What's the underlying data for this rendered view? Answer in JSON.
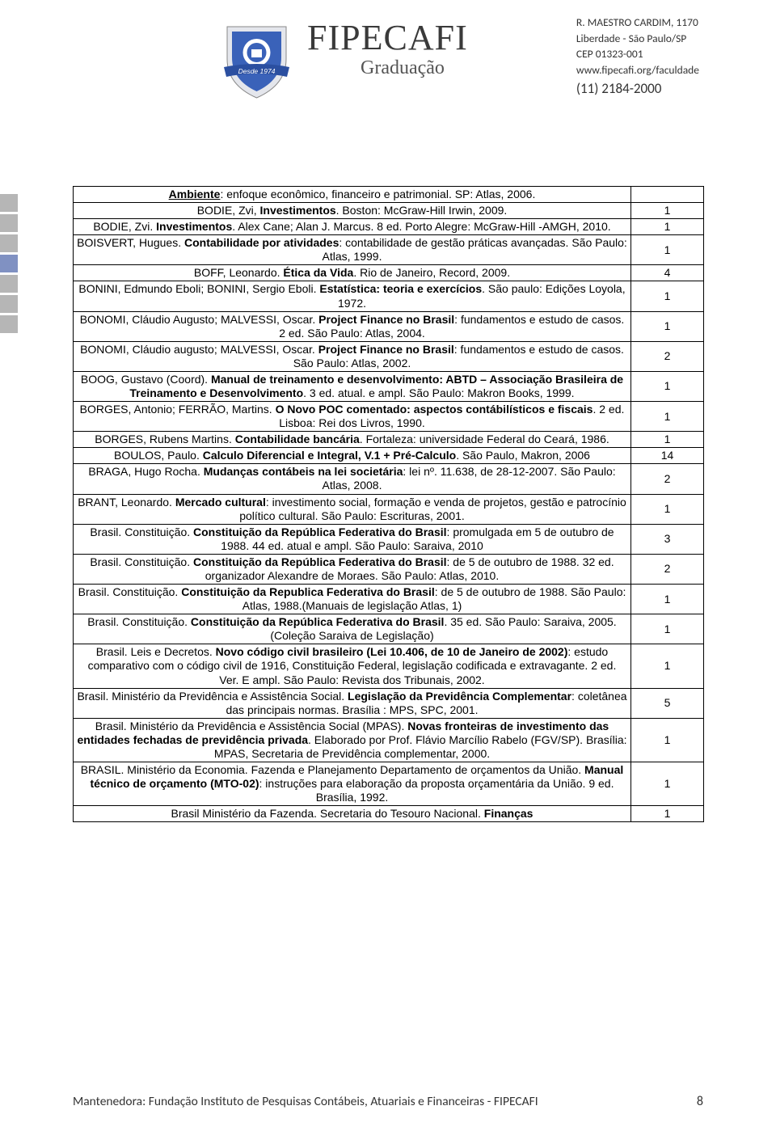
{
  "side_squares": {
    "colors": [
      "#b6b6b6",
      "#b6b6b6",
      "#b6b6b6",
      "#8091c2",
      "#b6b6b6",
      "#b6b6b6",
      "#b6b6b6"
    ]
  },
  "header": {
    "brand": "FIPECAFI",
    "subtitle": "Graduação",
    "shield": {
      "outer": "#d7d9e0",
      "inner": "#3a62b9",
      "inner2": "#ffffff",
      "ribbon_fill": "#2b4fa0",
      "ribbon_text": "Desde 1974",
      "ribbon_text_color": "#ffffff"
    }
  },
  "address": {
    "line1": "R. MAESTRO CARDIM, 1170",
    "line2": "Liberdade - São Paulo/SP",
    "line3": "CEP 01323-001",
    "line4": "www.fipecafi.org/faculdade",
    "phone": "(11) 2184-2000"
  },
  "rows": [
    {
      "html": "<span class='b'><u>Ambiente</u></span>: enfoque econômico, financeiro e patrimonial. SP: Atlas, 2006.",
      "qty": ""
    },
    {
      "html": "BODIE, Zvi, <span class='b'>Investimentos</span>. Boston: McGraw-Hill Irwin, 2009.",
      "qty": "1"
    },
    {
      "html": "BODIE, Zvi. <span class='b'>Investimentos</span>. Alex Cane; Alan J. Marcus. 8 ed. Porto Alegre: McGraw-Hill -AMGH, 2010.",
      "qty": "1"
    },
    {
      "html": "BOISVERT, Hugues. <span class='b'>Contabilidade por atividades</span>: contabilidade de gestão práticas avançadas. São Paulo: Atlas, 1999.",
      "qty": "1"
    },
    {
      "html": "BOFF, Leonardo. <span class='b'>Ética da Vida</span>. Rio de Janeiro, Record, 2009.",
      "qty": "4"
    },
    {
      "html": "BONINI, Edmundo Eboli; BONINI, Sergio Eboli. <span class='b'>Estatística: teoria e exercícios</span>. São paulo: Edições Loyola, 1972.",
      "qty": "1"
    },
    {
      "html": "BONOMI, Cláudio Augusto; MALVESSI, Oscar. <span class='b'>Project Finance no Brasil</span>: fundamentos e estudo de casos. 2 ed. São Paulo: Atlas, 2004.",
      "qty": "1"
    },
    {
      "html": "BONOMI, Cláudio augusto; MALVESSI, Oscar. <span class='b'>Project Finance no Brasil</span>: fundamentos e estudo de casos. São Paulo: Atlas, 2002.",
      "qty": "2"
    },
    {
      "html": "BOOG, Gustavo (Coord). <span class='b'>Manual de treinamento e desenvolvimento: ABTD – Associação Brasileira de Treinamento e Desenvolvimento</span>. 3 ed. atual. e ampl. São Paulo: Makron Books, 1999.",
      "qty": "1"
    },
    {
      "html": "BORGES, Antonio; FERRÃO, Martins. <span class='b'>O Novo POC comentado: aspectos contábilísticos e fiscais</span>. 2 ed. Lisboa: Rei dos Livros, 1990.",
      "qty": "1"
    },
    {
      "html": "BORGES, Rubens Martins. <span class='b'>Contabilidade bancária</span>. Fortaleza: universidade Federal do Ceará, 1986.",
      "qty": "1"
    },
    {
      "html": "BOULOS, Paulo. <span class='b'>Calculo Diferencial e Integral, V.1 + Pré-Calculo</span>. São Paulo, Makron, 2006",
      "qty": "14"
    },
    {
      "html": "BRAGA, Hugo Rocha. <span class='b'>Mudanças contábeis na lei societária</span>: lei nº. 11.638, de 28-12-2007. São Paulo: Atlas, 2008.",
      "qty": "2"
    },
    {
      "html": "BRANT, Leonardo. <span class='b'>Mercado cultural</span>: investimento social, formação e venda de projetos, gestão e patrocínio político cultural. São Paulo: Escrituras, 2001.",
      "qty": "1"
    },
    {
      "html": "Brasil. Constituição. <span class='b'>Constituição da República Federativa do Brasil</span>: promulgada em 5 de outubro de 1988. 44 ed. atual e ampl. São Paulo: Saraiva, 2010",
      "qty": "3"
    },
    {
      "html": "Brasil. Constituição. <span class='b'>Constituição da República Federativa do Brasil</span>: de 5 de outubro de 1988. 32 ed. organizador Alexandre de Moraes. São Paulo: Atlas, 2010.",
      "qty": "2"
    },
    {
      "html": "Brasil. Constituição. <span class='b'>Constituição da Republica Federativa do Brasil</span>: de 5 de outubro de 1988. São Paulo: Atlas, 1988.(Manuais de legislação Atlas, 1)",
      "qty": "1"
    },
    {
      "html": "Brasil. Constituição. <span class='b'>Constituição da República Federativa do Brasil</span>. 35 ed. São Paulo: Saraiva, 2005. (Coleção Saraiva de Legislação)",
      "qty": "1"
    },
    {
      "html": "Brasil. Leis e Decretos. <span class='b'>Novo código civil brasileiro (Lei 10.406, de 10 de Janeiro de 2002)</span>: estudo comparativo com o código civil de 1916, Constituição Federal, legislação codificada e extravagante. 2 ed. Ver. E ampl. São Paulo: Revista dos Tribunais, 2002.",
      "qty": "1"
    },
    {
      "html": "Brasil. Ministério da Previdência e Assistência Social. <span class='b'>Legislação da Previdência Complementar</span>: coletânea das principais normas. Brasília : MPS, SPC, 2001.",
      "qty": "5"
    },
    {
      "html": "Brasil. Ministério da Previdência e Assistência Social (MPAS). <span class='b'>Novas fronteiras de investimento das entidades fechadas de previdência privada</span>. Elaborado por  Prof. Flávio Marcílio Rabelo (FGV/SP). Brasília: MPAS, Secretaria de Previdência complementar, 2000.",
      "qty": "1"
    },
    {
      "html": "BRASIL. Ministério da Economia. Fazenda e Planejamento Departamento de orçamentos da União. <span class='b'>Manual técnico de orçamento (MTO-02)</span>: instruções para elaboração da proposta orçamentária da União. 9 ed. Brasília, 1992.",
      "qty": "1"
    },
    {
      "html": "Brasil Ministério da Fazenda. Secretaria do Tesouro Nacional. <span class='b'>Finanças</span>",
      "qty": "1"
    }
  ],
  "footer": {
    "text": "Mantenedora: Fundação Instituto de Pesquisas Contábeis, Atuariais e Financeiras - FIPECAFI",
    "page": "8"
  }
}
